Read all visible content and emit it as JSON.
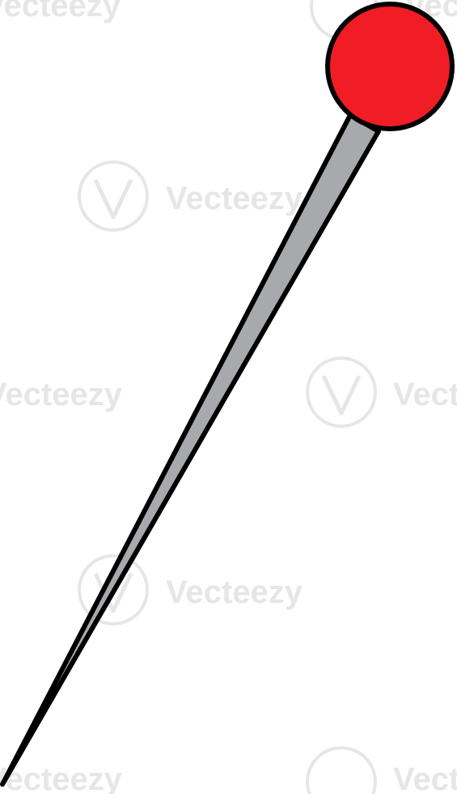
{
  "image": {
    "subject": "pin-icon",
    "background_color": "#ffffff"
  },
  "pin": {
    "head_color": "#f01d24",
    "needle_color": "#a7a9ac",
    "outline_color": "#000000"
  },
  "watermark": {
    "text": "Vecteezy",
    "color": "#e6e6e6"
  }
}
